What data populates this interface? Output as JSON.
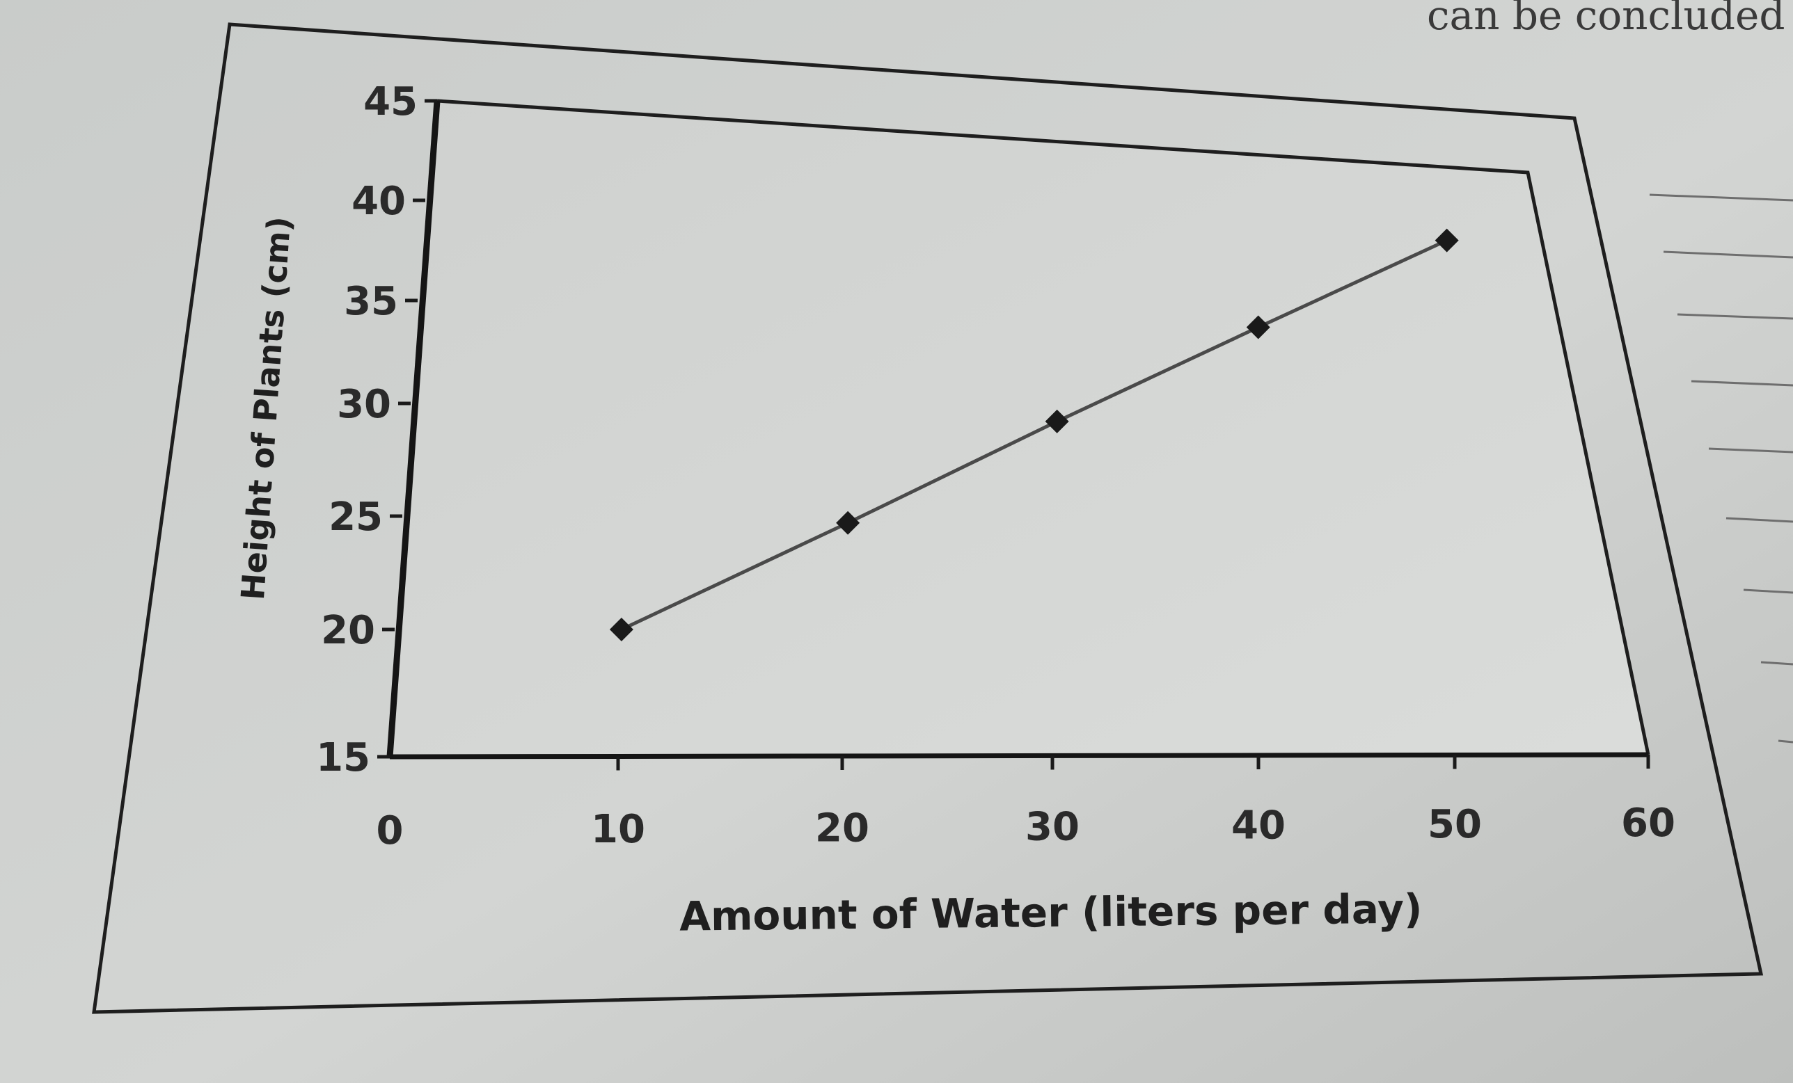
{
  "page": {
    "header_fragment": "can be concluded from"
  },
  "chart_data": {
    "type": "line",
    "title": "",
    "xlabel": "Amount of Water (liters per day)",
    "ylabel": "Height of Plants (cm)",
    "xlim": [
      0,
      60
    ],
    "ylim": [
      15,
      45
    ],
    "x_ticks": [
      "0",
      "10",
      "20",
      "30",
      "40",
      "50",
      "60"
    ],
    "y_ticks": [
      "15",
      "20",
      "25",
      "30",
      "35",
      "40",
      "45"
    ],
    "grid": false,
    "series": [
      {
        "x": [
          10,
          20,
          30,
          40,
          50
        ],
        "y": [
          20,
          24.7,
          29.2,
          33.7,
          38
        ]
      }
    ],
    "colors": {
      "line": "#4a4a4a",
      "marker": "#1a1a1a",
      "axis": "#1a1a1a"
    }
  }
}
